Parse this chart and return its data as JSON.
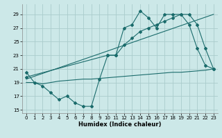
{
  "xlabel": "Humidex (Indice chaleur)",
  "bg_color": "#cce8e8",
  "grid_color": "#aacccc",
  "line_color": "#1a6b6b",
  "xlim": [
    -0.5,
    23.5
  ],
  "ylim": [
    14.5,
    30.5
  ],
  "yticks": [
    15,
    17,
    19,
    21,
    23,
    25,
    27,
    29
  ],
  "xticks": [
    0,
    1,
    2,
    3,
    4,
    5,
    6,
    7,
    8,
    9,
    10,
    11,
    12,
    13,
    14,
    15,
    16,
    17,
    18,
    19,
    20,
    21,
    22,
    23
  ],
  "line1_x": [
    0,
    1,
    2,
    3,
    4,
    5,
    6,
    7,
    8,
    9,
    10,
    11,
    12,
    13,
    14,
    15,
    16,
    17,
    18,
    19,
    20,
    21,
    22,
    23
  ],
  "line1_y": [
    20.5,
    19.0,
    18.5,
    17.5,
    16.5,
    17.0,
    16.0,
    15.5,
    15.5,
    19.5,
    23.0,
    23.0,
    27.0,
    27.5,
    29.5,
    28.5,
    27.0,
    29.0,
    29.0,
    29.0,
    27.5,
    24.0,
    21.5,
    21.0
  ],
  "line2_x": [
    0,
    23
  ],
  "line2_y": [
    19.5,
    29.0
  ],
  "line3_x": [
    0,
    10,
    11,
    12,
    13,
    14,
    15,
    16,
    17,
    18,
    19,
    20,
    21,
    22,
    23
  ],
  "line3_y": [
    19.8,
    23.0,
    23.0,
    24.5,
    25.5,
    26.5,
    27.0,
    27.5,
    28.0,
    28.5,
    29.0,
    29.0,
    27.5,
    24.0,
    21.0
  ],
  "line4_x": [
    0,
    1,
    2,
    3,
    4,
    5,
    6,
    7,
    8,
    9,
    10,
    11,
    12,
    13,
    14,
    15,
    16,
    17,
    18,
    19,
    20,
    21,
    22,
    23
  ],
  "line4_y": [
    19.0,
    19.0,
    18.8,
    19.0,
    19.2,
    19.3,
    19.4,
    19.5,
    19.5,
    19.6,
    19.7,
    19.8,
    19.9,
    20.0,
    20.1,
    20.2,
    20.3,
    20.4,
    20.5,
    20.5,
    20.6,
    20.7,
    20.8,
    21.0
  ],
  "tick_fontsize": 5,
  "xlabel_fontsize": 6
}
